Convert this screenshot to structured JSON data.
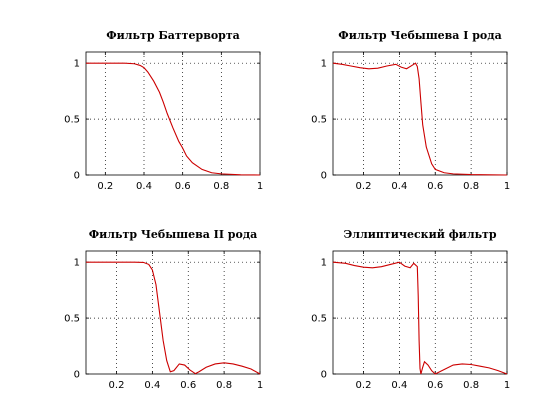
{
  "figure": {
    "background": "#ffffff"
  },
  "chart_data": [
    {
      "type": "line",
      "title": "Фильтр Баттерворта",
      "xlim": [
        0.1,
        1
      ],
      "ylim": [
        0,
        1.1
      ],
      "xticks": [
        0.2,
        0.4,
        0.6,
        0.8,
        1
      ],
      "xtick_labels": [
        "0.2",
        "0.4",
        "0.6",
        "0.8",
        "1"
      ],
      "yticks": [
        0,
        0.5,
        1
      ],
      "ytick_labels": [
        "0",
        "0.5",
        "1"
      ],
      "grid": true,
      "series": [
        {
          "color": "#cc0000",
          "x": [
            0.1,
            0.2,
            0.3,
            0.35,
            0.38,
            0.4,
            0.42,
            0.45,
            0.48,
            0.5,
            0.52,
            0.55,
            0.58,
            0.6,
            0.62,
            0.65,
            0.7,
            0.75,
            0.8,
            0.9,
            1.0
          ],
          "y": [
            1,
            1,
            1,
            0.995,
            0.98,
            0.96,
            0.92,
            0.84,
            0.74,
            0.65,
            0.55,
            0.42,
            0.3,
            0.24,
            0.17,
            0.11,
            0.05,
            0.02,
            0.01,
            0.002,
            0
          ]
        }
      ]
    },
    {
      "type": "line",
      "title": "Фильтр Чебышева I рода",
      "xlim": [
        0.03,
        1
      ],
      "ylim": [
        0,
        1.1
      ],
      "xticks": [
        0.2,
        0.4,
        0.6,
        0.8,
        1
      ],
      "xtick_labels": [
        "0.2",
        "0.4",
        "0.6",
        "0.8",
        "1"
      ],
      "yticks": [
        0,
        0.5,
        1
      ],
      "ytick_labels": [
        "0",
        "0.5",
        "1"
      ],
      "grid": true,
      "series": [
        {
          "color": "#cc0000",
          "x": [
            0.03,
            0.08,
            0.13,
            0.18,
            0.23,
            0.28,
            0.33,
            0.38,
            0.41,
            0.44,
            0.47,
            0.49,
            0.5,
            0.51,
            0.52,
            0.53,
            0.55,
            0.58,
            0.6,
            0.65,
            0.7,
            0.8,
            0.9,
            1.0
          ],
          "y": [
            1.0,
            0.99,
            0.975,
            0.96,
            0.95,
            0.955,
            0.975,
            0.99,
            0.965,
            0.95,
            0.98,
            1.0,
            0.97,
            0.86,
            0.65,
            0.45,
            0.25,
            0.1,
            0.05,
            0.02,
            0.01,
            0.004,
            0.002,
            0
          ]
        }
      ]
    },
    {
      "type": "line",
      "title": "Фильтр Чебышева II рода",
      "xlim": [
        0.03,
        1
      ],
      "ylim": [
        0,
        1.1
      ],
      "xticks": [
        0.2,
        0.4,
        0.6,
        0.8,
        1
      ],
      "xtick_labels": [
        "0.2",
        "0.4",
        "0.6",
        "0.8",
        "1"
      ],
      "yticks": [
        0,
        0.5,
        1
      ],
      "ytick_labels": [
        "0",
        "0.5",
        "1"
      ],
      "grid": true,
      "series": [
        {
          "color": "#cc0000",
          "x": [
            0.03,
            0.1,
            0.2,
            0.3,
            0.35,
            0.38,
            0.4,
            0.42,
            0.44,
            0.46,
            0.48,
            0.5,
            0.52,
            0.55,
            0.58,
            0.61,
            0.64,
            0.66,
            0.7,
            0.75,
            0.8,
            0.85,
            0.9,
            0.95,
            1.0
          ],
          "y": [
            1,
            1,
            1,
            1,
            0.998,
            0.98,
            0.93,
            0.8,
            0.55,
            0.3,
            0.12,
            0.02,
            0.03,
            0.09,
            0.08,
            0.035,
            0.003,
            0.02,
            0.06,
            0.09,
            0.1,
            0.09,
            0.07,
            0.045,
            0.0
          ]
        }
      ]
    },
    {
      "type": "line",
      "title": "Эллиптический фильтр",
      "xlim": [
        0.03,
        1
      ],
      "ylim": [
        0,
        1.1
      ],
      "xticks": [
        0.2,
        0.4,
        0.6,
        0.8,
        1
      ],
      "xtick_labels": [
        "0.2",
        "0.4",
        "0.6",
        "0.8",
        "1"
      ],
      "yticks": [
        0,
        0.5,
        1
      ],
      "ytick_labels": [
        "0",
        "0.5",
        "1"
      ],
      "grid": true,
      "series": [
        {
          "color": "#cc0000",
          "x": [
            0.03,
            0.1,
            0.15,
            0.2,
            0.25,
            0.3,
            0.35,
            0.4,
            0.43,
            0.46,
            0.48,
            0.5,
            0.505,
            0.51,
            0.515,
            0.52,
            0.53,
            0.54,
            0.56,
            0.58,
            0.6,
            0.65,
            0.7,
            0.75,
            0.8,
            0.85,
            0.9,
            0.95,
            1.0
          ],
          "y": [
            1.0,
            0.99,
            0.97,
            0.955,
            0.95,
            0.96,
            0.98,
            1.0,
            0.965,
            0.95,
            0.99,
            0.96,
            0.7,
            0.3,
            0.05,
            0.0,
            0.06,
            0.11,
            0.08,
            0.03,
            0.0,
            0.04,
            0.08,
            0.09,
            0.085,
            0.07,
            0.055,
            0.03,
            0.0
          ]
        }
      ]
    }
  ]
}
